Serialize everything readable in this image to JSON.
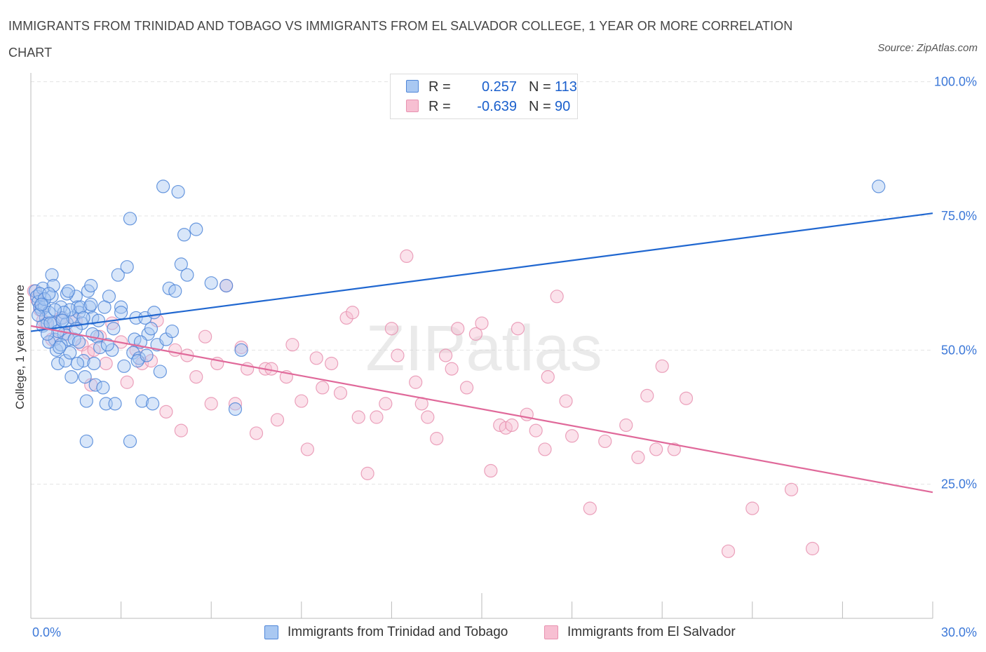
{
  "title": "IMMIGRANTS FROM TRINIDAD AND TOBAGO VS IMMIGRANTS FROM EL SALVADOR COLLEGE, 1 YEAR OR MORE CORRELATION CHART",
  "source": "Source: ZipAtlas.com",
  "watermark": "ZIPatlas",
  "legend": {
    "r_label": "R =",
    "n_label": "N =",
    "series1": {
      "r": "0.257",
      "n": "113"
    },
    "series2": {
      "r": "-0.639",
      "n": "90"
    }
  },
  "colors": {
    "series1_fill": "#a9c8f2",
    "series1_stroke": "#4f86d8",
    "series1_line": "#2067d0",
    "series2_fill": "#f7bfd2",
    "series2_stroke": "#e892b0",
    "series2_line": "#e0699a",
    "axis_label": "#3c78d8",
    "grid": "#e3e3e3"
  },
  "chart_data": {
    "type": "scatter",
    "title": "IMMIGRANTS FROM TRINIDAD AND TOBAGO VS IMMIGRANTS FROM EL SALVADOR COLLEGE, 1 YEAR OR MORE CORRELATION CHART",
    "xlabel": "",
    "ylabel": "College, 1 year or more",
    "xlim": [
      0,
      30
    ],
    "ylim": [
      0,
      100
    ],
    "x_tick_labels": [
      "0.0%",
      "30.0%"
    ],
    "y_ticks": [
      25,
      50,
      75,
      100
    ],
    "y_tick_labels": [
      "25.0%",
      "50.0%",
      "75.0%",
      "100.0%"
    ],
    "grid": "horizontal dashed",
    "legend_position": "top-center",
    "series": [
      {
        "name": "Immigrants from Trinidad and Tobago",
        "r": 0.257,
        "n": 113,
        "trend": {
          "x": [
            0,
            30
          ],
          "y": [
            53.5,
            75.5
          ]
        },
        "points": [
          [
            0.15,
            61
          ],
          [
            0.2,
            60
          ],
          [
            0.25,
            59
          ],
          [
            0.3,
            58
          ],
          [
            0.35,
            57.5
          ],
          [
            0.4,
            61.5
          ],
          [
            0.45,
            58
          ],
          [
            0.5,
            56
          ],
          [
            0.55,
            55
          ],
          [
            0.6,
            57
          ],
          [
            0.7,
            64
          ],
          [
            0.75,
            55
          ],
          [
            0.8,
            52
          ],
          [
            0.85,
            50
          ],
          [
            0.9,
            47.5
          ],
          [
            1.0,
            58
          ],
          [
            1.05,
            56
          ],
          [
            1.1,
            53
          ],
          [
            1.15,
            48
          ],
          [
            1.2,
            55
          ],
          [
            1.25,
            52
          ],
          [
            1.3,
            49.5
          ],
          [
            1.35,
            45
          ],
          [
            1.4,
            56
          ],
          [
            1.5,
            60
          ],
          [
            1.55,
            58
          ],
          [
            1.6,
            57
          ],
          [
            1.7,
            55
          ],
          [
            1.75,
            48
          ],
          [
            1.8,
            45
          ],
          [
            1.85,
            40.5
          ],
          [
            1.9,
            61
          ],
          [
            1.95,
            58
          ],
          [
            2.0,
            62
          ],
          [
            2.05,
            56
          ],
          [
            2.1,
            47.5
          ],
          [
            2.15,
            43.5
          ],
          [
            2.2,
            52.5
          ],
          [
            2.3,
            50.5
          ],
          [
            2.4,
            43
          ],
          [
            2.5,
            40
          ],
          [
            2.6,
            60
          ],
          [
            2.7,
            50
          ],
          [
            2.8,
            40
          ],
          [
            2.9,
            64
          ],
          [
            3.0,
            58
          ],
          [
            3.1,
            47
          ],
          [
            3.2,
            65.5
          ],
          [
            3.3,
            74.5
          ],
          [
            3.4,
            49.5
          ],
          [
            3.5,
            56
          ],
          [
            3.6,
            48.5
          ],
          [
            3.7,
            40.5
          ],
          [
            3.8,
            56
          ],
          [
            3.9,
            53
          ],
          [
            4.0,
            54
          ],
          [
            4.1,
            57
          ],
          [
            4.2,
            51
          ],
          [
            4.3,
            46
          ],
          [
            4.4,
            80.5
          ],
          [
            4.5,
            52
          ],
          [
            4.6,
            61.5
          ],
          [
            4.7,
            53.5
          ],
          [
            4.8,
            61
          ],
          [
            4.9,
            79.5
          ],
          [
            5.0,
            66
          ],
          [
            5.1,
            71.5
          ],
          [
            5.2,
            64
          ],
          [
            5.5,
            72.5
          ],
          [
            6.0,
            62.5
          ],
          [
            6.5,
            62
          ],
          [
            6.8,
            39
          ],
          [
            7.0,
            50
          ],
          [
            0.3,
            60.5
          ],
          [
            0.4,
            54.5
          ],
          [
            0.6,
            51.5
          ],
          [
            0.65,
            55
          ],
          [
            0.7,
            60
          ],
          [
            0.9,
            53.5
          ],
          [
            1.0,
            51
          ],
          [
            1.2,
            60.5
          ],
          [
            1.3,
            57.5
          ],
          [
            1.45,
            52
          ],
          [
            1.55,
            47.5
          ],
          [
            1.65,
            58
          ],
          [
            1.85,
            33
          ],
          [
            2.0,
            58.5
          ],
          [
            2.25,
            55.5
          ],
          [
            2.45,
            58
          ],
          [
            2.55,
            51
          ],
          [
            2.75,
            54
          ],
          [
            3.0,
            57
          ],
          [
            3.3,
            33
          ],
          [
            3.45,
            52
          ],
          [
            3.55,
            48
          ],
          [
            3.65,
            51.5
          ],
          [
            3.85,
            49
          ],
          [
            4.05,
            40
          ],
          [
            0.25,
            56.5
          ],
          [
            0.45,
            59.5
          ],
          [
            0.55,
            53
          ],
          [
            0.75,
            62
          ],
          [
            0.95,
            50.5
          ],
          [
            1.1,
            57
          ],
          [
            1.25,
            61
          ],
          [
            1.5,
            54
          ],
          [
            1.6,
            51.5
          ],
          [
            1.75,
            56
          ],
          [
            2.05,
            53
          ],
          [
            28.2,
            80.5
          ],
          [
            0.35,
            58.5
          ],
          [
            0.6,
            60.5
          ],
          [
            0.8,
            57.5
          ],
          [
            1.05,
            55.5
          ]
        ]
      },
      {
        "name": "Immigrants from El Salvador",
        "r": -0.639,
        "n": 90,
        "trend": {
          "x": [
            0,
            30
          ],
          "y": [
            54.5,
            23.5
          ]
        },
        "points": [
          [
            0.1,
            61
          ],
          [
            0.2,
            59.5
          ],
          [
            0.3,
            57.5
          ],
          [
            0.5,
            55
          ],
          [
            0.7,
            52
          ],
          [
            1.0,
            56
          ],
          [
            1.2,
            53
          ],
          [
            1.5,
            55.5
          ],
          [
            1.7,
            51
          ],
          [
            1.9,
            49.5
          ],
          [
            2.1,
            50
          ],
          [
            2.3,
            52.5
          ],
          [
            2.5,
            47.5
          ],
          [
            2.7,
            55
          ],
          [
            3.0,
            51.5
          ],
          [
            3.2,
            44
          ],
          [
            3.5,
            50
          ],
          [
            3.7,
            47.5
          ],
          [
            4.0,
            48
          ],
          [
            4.2,
            55.5
          ],
          [
            4.5,
            38.5
          ],
          [
            4.8,
            50
          ],
          [
            5.0,
            35
          ],
          [
            5.2,
            49
          ],
          [
            5.5,
            45
          ],
          [
            5.8,
            52.5
          ],
          [
            6.0,
            40
          ],
          [
            6.2,
            47.5
          ],
          [
            6.5,
            62
          ],
          [
            6.8,
            40
          ],
          [
            7.0,
            50.5
          ],
          [
            7.2,
            46.5
          ],
          [
            7.5,
            34.5
          ],
          [
            7.8,
            46.5
          ],
          [
            8.0,
            46.5
          ],
          [
            8.2,
            37
          ],
          [
            8.5,
            45
          ],
          [
            8.7,
            51
          ],
          [
            9.0,
            40.5
          ],
          [
            9.2,
            31.5
          ],
          [
            9.5,
            48.5
          ],
          [
            9.7,
            43
          ],
          [
            10.0,
            47.5
          ],
          [
            10.3,
            42
          ],
          [
            10.5,
            56
          ],
          [
            10.7,
            57
          ],
          [
            10.9,
            37.5
          ],
          [
            11.2,
            27
          ],
          [
            11.5,
            37.5
          ],
          [
            11.8,
            40
          ],
          [
            12.0,
            54
          ],
          [
            12.2,
            49
          ],
          [
            12.5,
            67.5
          ],
          [
            12.8,
            44
          ],
          [
            13.0,
            40
          ],
          [
            13.2,
            37.5
          ],
          [
            13.5,
            33.5
          ],
          [
            13.8,
            49
          ],
          [
            14.0,
            46.5
          ],
          [
            14.2,
            54
          ],
          [
            14.5,
            43
          ],
          [
            14.8,
            53
          ],
          [
            15.0,
            55
          ],
          [
            15.3,
            27.5
          ],
          [
            15.6,
            36
          ],
          [
            15.8,
            35.5
          ],
          [
            16.0,
            36
          ],
          [
            16.2,
            54
          ],
          [
            16.5,
            38
          ],
          [
            16.8,
            35
          ],
          [
            17.1,
            31.5
          ],
          [
            17.2,
            45
          ],
          [
            17.5,
            60
          ],
          [
            17.8,
            40.5
          ],
          [
            18.0,
            34
          ],
          [
            18.6,
            20.5
          ],
          [
            19.1,
            33
          ],
          [
            19.8,
            36
          ],
          [
            20.2,
            30
          ],
          [
            20.5,
            41.5
          ],
          [
            20.8,
            31.5
          ],
          [
            21.0,
            47
          ],
          [
            21.4,
            31.5
          ],
          [
            21.8,
            41
          ],
          [
            23.2,
            12.5
          ],
          [
            24.0,
            20.5
          ],
          [
            25.3,
            24
          ],
          [
            26.0,
            13
          ],
          [
            0.4,
            55.5
          ],
          [
            2.0,
            43.5
          ]
        ]
      }
    ]
  },
  "bottom_legend": {
    "series1": "Immigrants from Trinidad and Tobago",
    "series2": "Immigrants from El Salvador"
  }
}
